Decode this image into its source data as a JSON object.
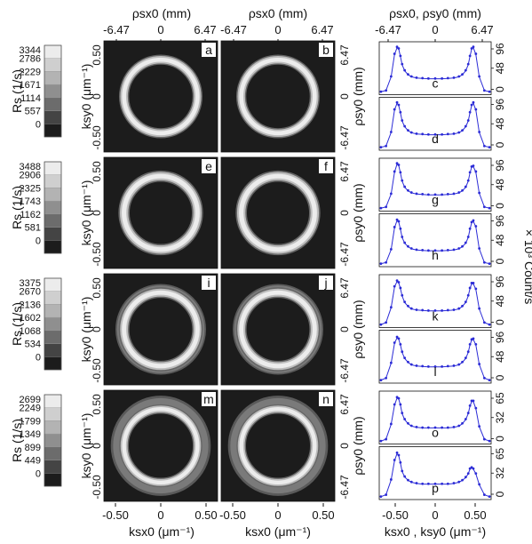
{
  "chart_data": {
    "type": "figure",
    "top_axis": {
      "label_left": "ρsx0 (mm)",
      "label_mid": "ρsx0 (mm)",
      "label_right": "ρsx0, ρsy0 (mm)",
      "ticks": [
        "-6.47",
        "0",
        "6.47"
      ]
    },
    "bottom_axis": {
      "label_left": "ksx0 (μm⁻¹)",
      "label_mid": "ksx0 (μm⁻¹)",
      "label_right": "ksx0 , ksy0 (μm⁻¹)",
      "ticks_map": [
        "-0.50",
        "0",
        "0.50"
      ],
      "ticks_profile": [
        "-0.50",
        "0",
        "0.50"
      ]
    },
    "map_ylabel": "ksy0 (μm⁻¹)",
    "map_yticks": [
      "0.50",
      "0",
      "-0.50"
    ],
    "rho_ylabel": "ρsy0 (mm)",
    "rho_yticks": [
      "6.47",
      "0",
      "-6.47"
    ],
    "count_label": "× 10³ Count/s",
    "colorbar_label": "Rs (1/s)",
    "rows": [
      {
        "colorbar_ticks": [
          "3344",
          "2786",
          "2229",
          "1671",
          "1114",
          "557",
          "0"
        ],
        "panels": [
          "a",
          "b"
        ],
        "ring": {
          "radius": 0.42,
          "width": 0.085,
          "outer": 0.0,
          "outer_width": 0.0
        },
        "profiles": [
          {
            "label": "c",
            "yticks": [
              "96",
              "48",
              "0"
            ],
            "ymax": 120,
            "x": [
              -0.64,
              -0.58,
              -0.52,
              -0.48,
              -0.45,
              -0.43,
              -0.41,
              -0.39,
              -0.36,
              -0.32,
              -0.28,
              -0.22,
              -0.15,
              -0.08,
              0,
              0.08,
              0.15,
              0.22,
              0.28,
              0.32,
              0.36,
              0.39,
              0.41,
              0.43,
              0.45,
              0.48,
              0.52,
              0.58,
              0.64
            ],
            "y": [
              3,
              6,
              40,
              95,
              112,
              108,
              90,
              70,
              55,
              45,
              40,
              37,
              36,
              35,
              35,
              35,
              36,
              37,
              40,
              45,
              55,
              70,
              90,
              108,
              112,
              95,
              40,
              6,
              3
            ]
          },
          {
            "label": "d",
            "yticks": [
              "96",
              "48",
              "0"
            ],
            "ymax": 120,
            "x": [
              -0.64,
              -0.58,
              -0.52,
              -0.48,
              -0.45,
              -0.43,
              -0.41,
              -0.39,
              -0.36,
              -0.32,
              -0.28,
              -0.22,
              -0.15,
              -0.08,
              0,
              0.08,
              0.15,
              0.22,
              0.28,
              0.32,
              0.36,
              0.39,
              0.41,
              0.43,
              0.45,
              0.48,
              0.52,
              0.58,
              0.64
            ],
            "y": [
              3,
              6,
              40,
              95,
              112,
              106,
              88,
              68,
              54,
              44,
              39,
              36,
              35,
              34,
              34,
              34,
              35,
              36,
              39,
              44,
              54,
              68,
              88,
              106,
              112,
              95,
              40,
              6,
              3
            ]
          }
        ]
      },
      {
        "colorbar_ticks": [
          "3488",
          "2906",
          "2325",
          "1743",
          "1162",
          "581",
          "0"
        ],
        "panels": [
          "e",
          "f"
        ],
        "ring": {
          "radius": 0.42,
          "width": 0.095,
          "outer": 0.0,
          "outer_width": 0.0
        },
        "profiles": [
          {
            "label": "g",
            "yticks": [
              "96",
              "48",
              "0"
            ],
            "ymax": 120,
            "x": [
              -0.64,
              -0.58,
              -0.52,
              -0.48,
              -0.45,
              -0.43,
              -0.41,
              -0.39,
              -0.36,
              -0.32,
              -0.28,
              -0.22,
              -0.15,
              -0.08,
              0,
              0.08,
              0.15,
              0.22,
              0.28,
              0.32,
              0.36,
              0.39,
              0.41,
              0.43,
              0.45,
              0.48,
              0.52,
              0.58,
              0.64
            ],
            "y": [
              3,
              6,
              38,
              92,
              112,
              108,
              90,
              70,
              55,
              46,
              41,
              38,
              37,
              36,
              36,
              36,
              37,
              38,
              41,
              46,
              55,
              70,
              90,
              104,
              106,
              92,
              40,
              6,
              3
            ]
          },
          {
            "label": "h",
            "yticks": [
              "96",
              "48",
              "0"
            ],
            "ymax": 120,
            "x": [
              -0.64,
              -0.58,
              -0.52,
              -0.48,
              -0.45,
              -0.43,
              -0.41,
              -0.39,
              -0.36,
              -0.32,
              -0.28,
              -0.22,
              -0.15,
              -0.08,
              0,
              0.08,
              0.15,
              0.22,
              0.28,
              0.32,
              0.36,
              0.39,
              0.41,
              0.43,
              0.45,
              0.48,
              0.52,
              0.58,
              0.64
            ],
            "y": [
              3,
              6,
              38,
              92,
              110,
              106,
              88,
              68,
              54,
              45,
              40,
              37,
              36,
              35,
              35,
              35,
              36,
              37,
              40,
              45,
              54,
              68,
              88,
              104,
              108,
              94,
              40,
              6,
              3
            ]
          }
        ]
      },
      {
        "colorbar_ticks": [
          "3375",
          "2670",
          "2136",
          "1602",
          "1068",
          "534",
          "0"
        ],
        "panels": [
          "i",
          "j"
        ],
        "ring": {
          "radius": 0.42,
          "width": 0.09,
          "outer": 0.47,
          "outer_width": 0.06
        },
        "profiles": [
          {
            "label": "k",
            "yticks": [
              "96",
              "48",
              "0"
            ],
            "ymax": 120,
            "x": [
              -0.64,
              -0.58,
              -0.52,
              -0.48,
              -0.45,
              -0.43,
              -0.41,
              -0.39,
              -0.36,
              -0.32,
              -0.28,
              -0.22,
              -0.15,
              -0.08,
              0,
              0.08,
              0.15,
              0.22,
              0.28,
              0.32,
              0.36,
              0.39,
              0.41,
              0.43,
              0.45,
              0.48,
              0.52,
              0.58,
              0.64
            ],
            "y": [
              3,
              8,
              45,
              96,
              110,
              106,
              92,
              74,
              58,
              48,
              42,
              39,
              38,
              37,
              37,
              37,
              38,
              39,
              42,
              48,
              58,
              74,
              92,
              104,
              104,
              90,
              42,
              8,
              3
            ]
          },
          {
            "label": "l",
            "yticks": [
              "96",
              "48",
              "0"
            ],
            "ymax": 120,
            "x": [
              -0.64,
              -0.58,
              -0.52,
              -0.48,
              -0.45,
              -0.43,
              -0.41,
              -0.39,
              -0.36,
              -0.32,
              -0.28,
              -0.22,
              -0.15,
              -0.08,
              0,
              0.08,
              0.15,
              0.22,
              0.28,
              0.32,
              0.36,
              0.39,
              0.41,
              0.43,
              0.45,
              0.48,
              0.52,
              0.58,
              0.64
            ],
            "y": [
              3,
              8,
              45,
              94,
              108,
              104,
              90,
              72,
              57,
              47,
              41,
              38,
              37,
              36,
              36,
              36,
              37,
              38,
              41,
              47,
              57,
              72,
              90,
              102,
              104,
              90,
              42,
              8,
              3
            ]
          }
        ]
      },
      {
        "colorbar_ticks": [
          "2699",
          "2249",
          "1799",
          "1349",
          "899",
          "449",
          "0"
        ],
        "panels": [
          "m",
          "n"
        ],
        "ring": {
          "radius": 0.42,
          "width": 0.08,
          "outer": 0.5,
          "outer_width": 0.09
        },
        "profiles": [
          {
            "label": "o",
            "yticks": [
              "65",
              "32",
              "0"
            ],
            "ymax": 81,
            "x": [
              -0.64,
              -0.58,
              -0.52,
              -0.48,
              -0.45,
              -0.43,
              -0.41,
              -0.39,
              -0.36,
              -0.32,
              -0.28,
              -0.22,
              -0.15,
              -0.08,
              0,
              0.08,
              0.15,
              0.22,
              0.28,
              0.32,
              0.36,
              0.39,
              0.41,
              0.43,
              0.45,
              0.48,
              0.52,
              0.58,
              0.64
            ],
            "y": [
              2,
              5,
              30,
              62,
              74,
              72,
              62,
              48,
              38,
              31,
              27,
              25,
              24,
              24,
              24,
              24,
              24,
              25,
              27,
              31,
              38,
              48,
              60,
              68,
              68,
              56,
              26,
              5,
              2
            ]
          },
          {
            "label": "p",
            "yticks": [
              "65",
              "32",
              "0"
            ],
            "ymax": 81,
            "x": [
              -0.64,
              -0.58,
              -0.52,
              -0.48,
              -0.45,
              -0.43,
              -0.41,
              -0.39,
              -0.36,
              -0.32,
              -0.28,
              -0.22,
              -0.15,
              -0.08,
              0,
              0.08,
              0.15,
              0.22,
              0.28,
              0.32,
              0.36,
              0.39,
              0.41,
              0.43,
              0.45,
              0.48,
              0.52,
              0.58,
              0.64
            ],
            "y": [
              2,
              5,
              30,
              62,
              74,
              70,
              58,
              44,
              35,
              29,
              26,
              24,
              23,
              23,
              23,
              23,
              23,
              24,
              26,
              29,
              34,
              40,
              48,
              50,
              48,
              40,
              22,
              5,
              2
            ]
          }
        ]
      }
    ],
    "colors": {
      "curve": "#2b2bd6",
      "map_bg": "#1c1c1c",
      "ring": "#ececec"
    }
  }
}
